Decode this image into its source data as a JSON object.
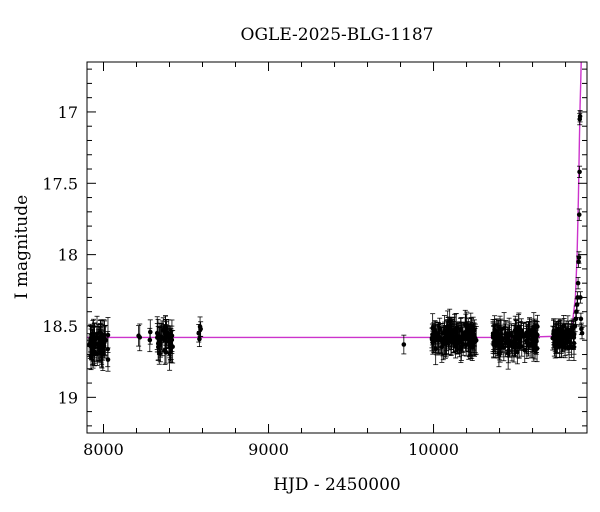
{
  "chart_data": {
    "type": "scatter",
    "title": "OGLE-2025-BLG-1187",
    "xlabel": "HJD - 2450000",
    "ylabel": "I magnitude",
    "xlim": [
      7900,
      10930
    ],
    "ylim": [
      19.25,
      16.65
    ],
    "y_inverted": true,
    "grid": false,
    "x_ticks": [
      8000,
      9000,
      10000
    ],
    "x_tick_labels": [
      "8000",
      "9000",
      "10000"
    ],
    "y_ticks": [
      17,
      17.5,
      18,
      18.5,
      19
    ],
    "y_tick_labels": [
      "17",
      "17.5",
      "18",
      "18.5",
      "19"
    ],
    "colors": {
      "points": "#000000",
      "model": "#cc33cc"
    },
    "baseline_mag": 18.58,
    "model_curve": {
      "x": [
        7900,
        10500,
        10800,
        10840,
        10860,
        10870,
        10878,
        10884,
        10888,
        10892,
        10895
      ],
      "y": [
        18.58,
        18.58,
        18.57,
        18.5,
        18.3,
        18.0,
        17.6,
        17.2,
        16.95,
        16.8,
        16.65
      ]
    },
    "observing_seasons": [
      {
        "start": 7910,
        "end": 8030,
        "count": 55,
        "mean": 18.62,
        "scatter": 0.07,
        "err": 0.1
      },
      {
        "start": 8210,
        "end": 8220,
        "count": 2,
        "mean": 18.6,
        "scatter": 0.03,
        "err": 0.08
      },
      {
        "start": 8270,
        "end": 8285,
        "count": 2,
        "mean": 18.56,
        "scatter": 0.03,
        "err": 0.09
      },
      {
        "start": 8325,
        "end": 8420,
        "count": 40,
        "mean": 18.6,
        "scatter": 0.07,
        "err": 0.1
      },
      {
        "start": 8575,
        "end": 8590,
        "count": 4,
        "mean": 18.56,
        "scatter": 0.04,
        "err": 0.06
      },
      {
        "start": 9815,
        "end": 9825,
        "count": 1,
        "mean": 18.63,
        "scatter": 0.0,
        "err": 0.07
      },
      {
        "start": 9990,
        "end": 10260,
        "count": 130,
        "mean": 18.58,
        "scatter": 0.06,
        "err": 0.09
      },
      {
        "start": 10360,
        "end": 10630,
        "count": 120,
        "mean": 18.58,
        "scatter": 0.06,
        "err": 0.09
      },
      {
        "start": 10720,
        "end": 10855,
        "count": 70,
        "mean": 18.58,
        "scatter": 0.05,
        "err": 0.08
      }
    ],
    "event_points": {
      "x": [
        10858,
        10862,
        10866,
        10870,
        10873,
        10876,
        10879,
        10881,
        10883,
        10885,
        10886,
        10888,
        10890,
        10893,
        10896,
        10900
      ],
      "y": [
        18.5,
        18.45,
        18.4,
        18.35,
        18.3,
        18.2,
        18.05,
        18.02,
        17.72,
        17.42,
        17.05,
        17.03,
        18.3,
        18.45,
        18.52,
        18.55
      ]
    }
  }
}
